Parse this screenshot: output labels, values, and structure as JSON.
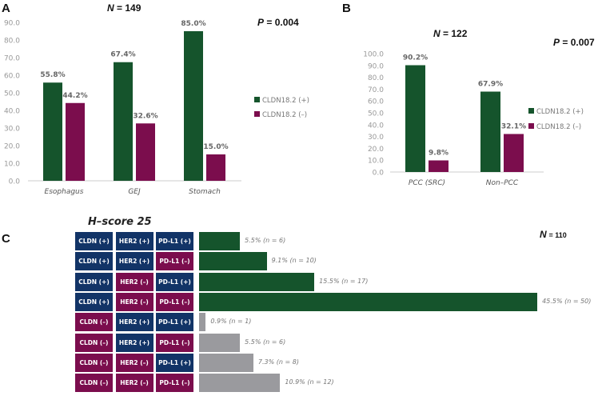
{
  "colors": {
    "positive": "#15542c",
    "negative": "#7b0d4d",
    "marker_pos": "#123467",
    "gray": "#9a9a9e"
  },
  "chart_data": [
    {
      "panel": "A",
      "type": "bar",
      "n_label": "N",
      "n_value": "= 149",
      "p_label": "P",
      "p_value": "= 0.004",
      "categories": [
        "Esophagus",
        "GEJ",
        "Stomach"
      ],
      "series": [
        {
          "name": "CLDN18.2  (+)",
          "values": [
            55.8,
            67.4,
            85.0
          ]
        },
        {
          "name": "CLDN18.2 (–)",
          "values": [
            44.2,
            32.6,
            15.0
          ]
        }
      ],
      "data_labels": [
        [
          "55.8%",
          "67.4%",
          "85.0%"
        ],
        [
          "44.2%",
          "32.6%",
          "15.0%"
        ]
      ],
      "ylim": [
        0,
        90
      ],
      "yticks": [
        "0.0",
        "10.0",
        "20.0",
        "30.0",
        "40.0",
        "50.0",
        "60.0",
        "70.0",
        "80.0",
        "90.0"
      ],
      "grid": false,
      "legend": "right"
    },
    {
      "panel": "B",
      "type": "bar",
      "n_label": "N",
      "n_value": "= 122",
      "p_label": "P",
      "p_value": "= 0.007",
      "categories": [
        "PCC (SRC)",
        "Non–PCC"
      ],
      "series": [
        {
          "name": "CLDN18.2  (+)",
          "values": [
            90.2,
            67.9
          ]
        },
        {
          "name": "CLDN18.2 (–)",
          "values": [
            9.8,
            32.1
          ]
        }
      ],
      "data_labels": [
        [
          "90.2%",
          "67.9%"
        ],
        [
          "9.8%",
          "32.1%"
        ]
      ],
      "ylim": [
        0,
        100
      ],
      "yticks": [
        "0.0",
        "10.0",
        "20.0",
        "30.0",
        "40.0",
        "50.0",
        "60.0",
        "70.0",
        "80.0",
        "90.0",
        "100.0"
      ],
      "grid": false,
      "legend": "right"
    },
    {
      "panel": "C",
      "type": "bar",
      "orientation": "horizontal",
      "title": "H–score 25",
      "n_label": "N",
      "n_value": "= 110",
      "rows": [
        {
          "markers": [
            "CLDN (+)",
            "HER2 (+)",
            "PD-L1 (+)"
          ],
          "signs": [
            1,
            1,
            1
          ],
          "value": 5.5,
          "label": "5.5% (n = 6)"
        },
        {
          "markers": [
            "CLDN (+)",
            "HER2 (+)",
            "PD-L1 (–)"
          ],
          "signs": [
            1,
            1,
            0
          ],
          "value": 9.1,
          "label": "9.1% (n = 10)"
        },
        {
          "markers": [
            "CLDN (+)",
            "HER2 (–)",
            "PD-L1 (+)"
          ],
          "signs": [
            1,
            0,
            1
          ],
          "value": 15.5,
          "label": "15.5% (n = 17)"
        },
        {
          "markers": [
            "CLDN (+)",
            "HER2 (–)",
            "PD-L1 (–)"
          ],
          "signs": [
            1,
            0,
            0
          ],
          "value": 45.5,
          "label": "45.5% (n = 50)"
        },
        {
          "markers": [
            "CLDN (–)",
            "HER2 (+)",
            "PD-L1 (+)"
          ],
          "signs": [
            0,
            1,
            1
          ],
          "value": 0.9,
          "label": "0.9% (n = 1)"
        },
        {
          "markers": [
            "CLDN (–)",
            "HER2 (+)",
            "PD-L1 (–)"
          ],
          "signs": [
            0,
            1,
            0
          ],
          "value": 5.5,
          "label": "5.5% (n = 6)"
        },
        {
          "markers": [
            "CLDN (–)",
            "HER2 (–)",
            "PD-L1 (+)"
          ],
          "signs": [
            0,
            0,
            1
          ],
          "value": 7.3,
          "label": "7.3% (n = 8)"
        },
        {
          "markers": [
            "CLDN (–)",
            "HER2 (–)",
            "PD-L1 (–)"
          ],
          "signs": [
            0,
            0,
            0
          ],
          "value": 10.9,
          "label": "10.9% (n = 12)"
        }
      ]
    }
  ],
  "panels": {
    "a": "A",
    "b": "B",
    "c": "C"
  }
}
